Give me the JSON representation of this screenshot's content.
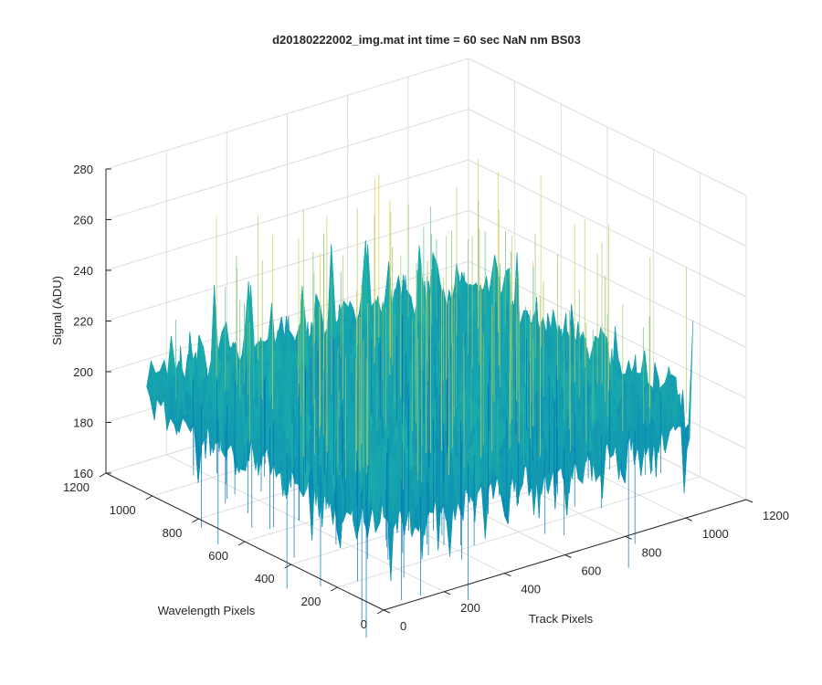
{
  "chart_data": {
    "type": "surface",
    "title": "d20180222002_img.mat int time = 60 sec  NaN nm BS03",
    "xlabel": "Track Pixels",
    "ylabel": "Wavelength Pixels",
    "zlabel": "Signal (ADU)",
    "xlim": [
      0,
      1200
    ],
    "ylim": [
      0,
      1200
    ],
    "zlim": [
      160,
      280
    ],
    "x_ticks": [
      "0",
      "200",
      "400",
      "600",
      "800",
      "1000",
      "1200"
    ],
    "y_ticks": [
      "0",
      "200",
      "400",
      "600",
      "800",
      "1000",
      "1200"
    ],
    "z_ticks": [
      "160",
      "180",
      "200",
      "220",
      "240",
      "260",
      "280"
    ],
    "grid": true,
    "colormap": "parula",
    "surface": {
      "x_range": [
        0,
        1024
      ],
      "y_range": [
        0,
        1024
      ],
      "mean_signal": 200,
      "noise_range": [
        165,
        270
      ]
    },
    "colors": {
      "axis": "#262626",
      "grid": "#dddddd",
      "low": "#0072bd",
      "mid": "#1fb5a8",
      "high": "#e8d24a"
    }
  }
}
